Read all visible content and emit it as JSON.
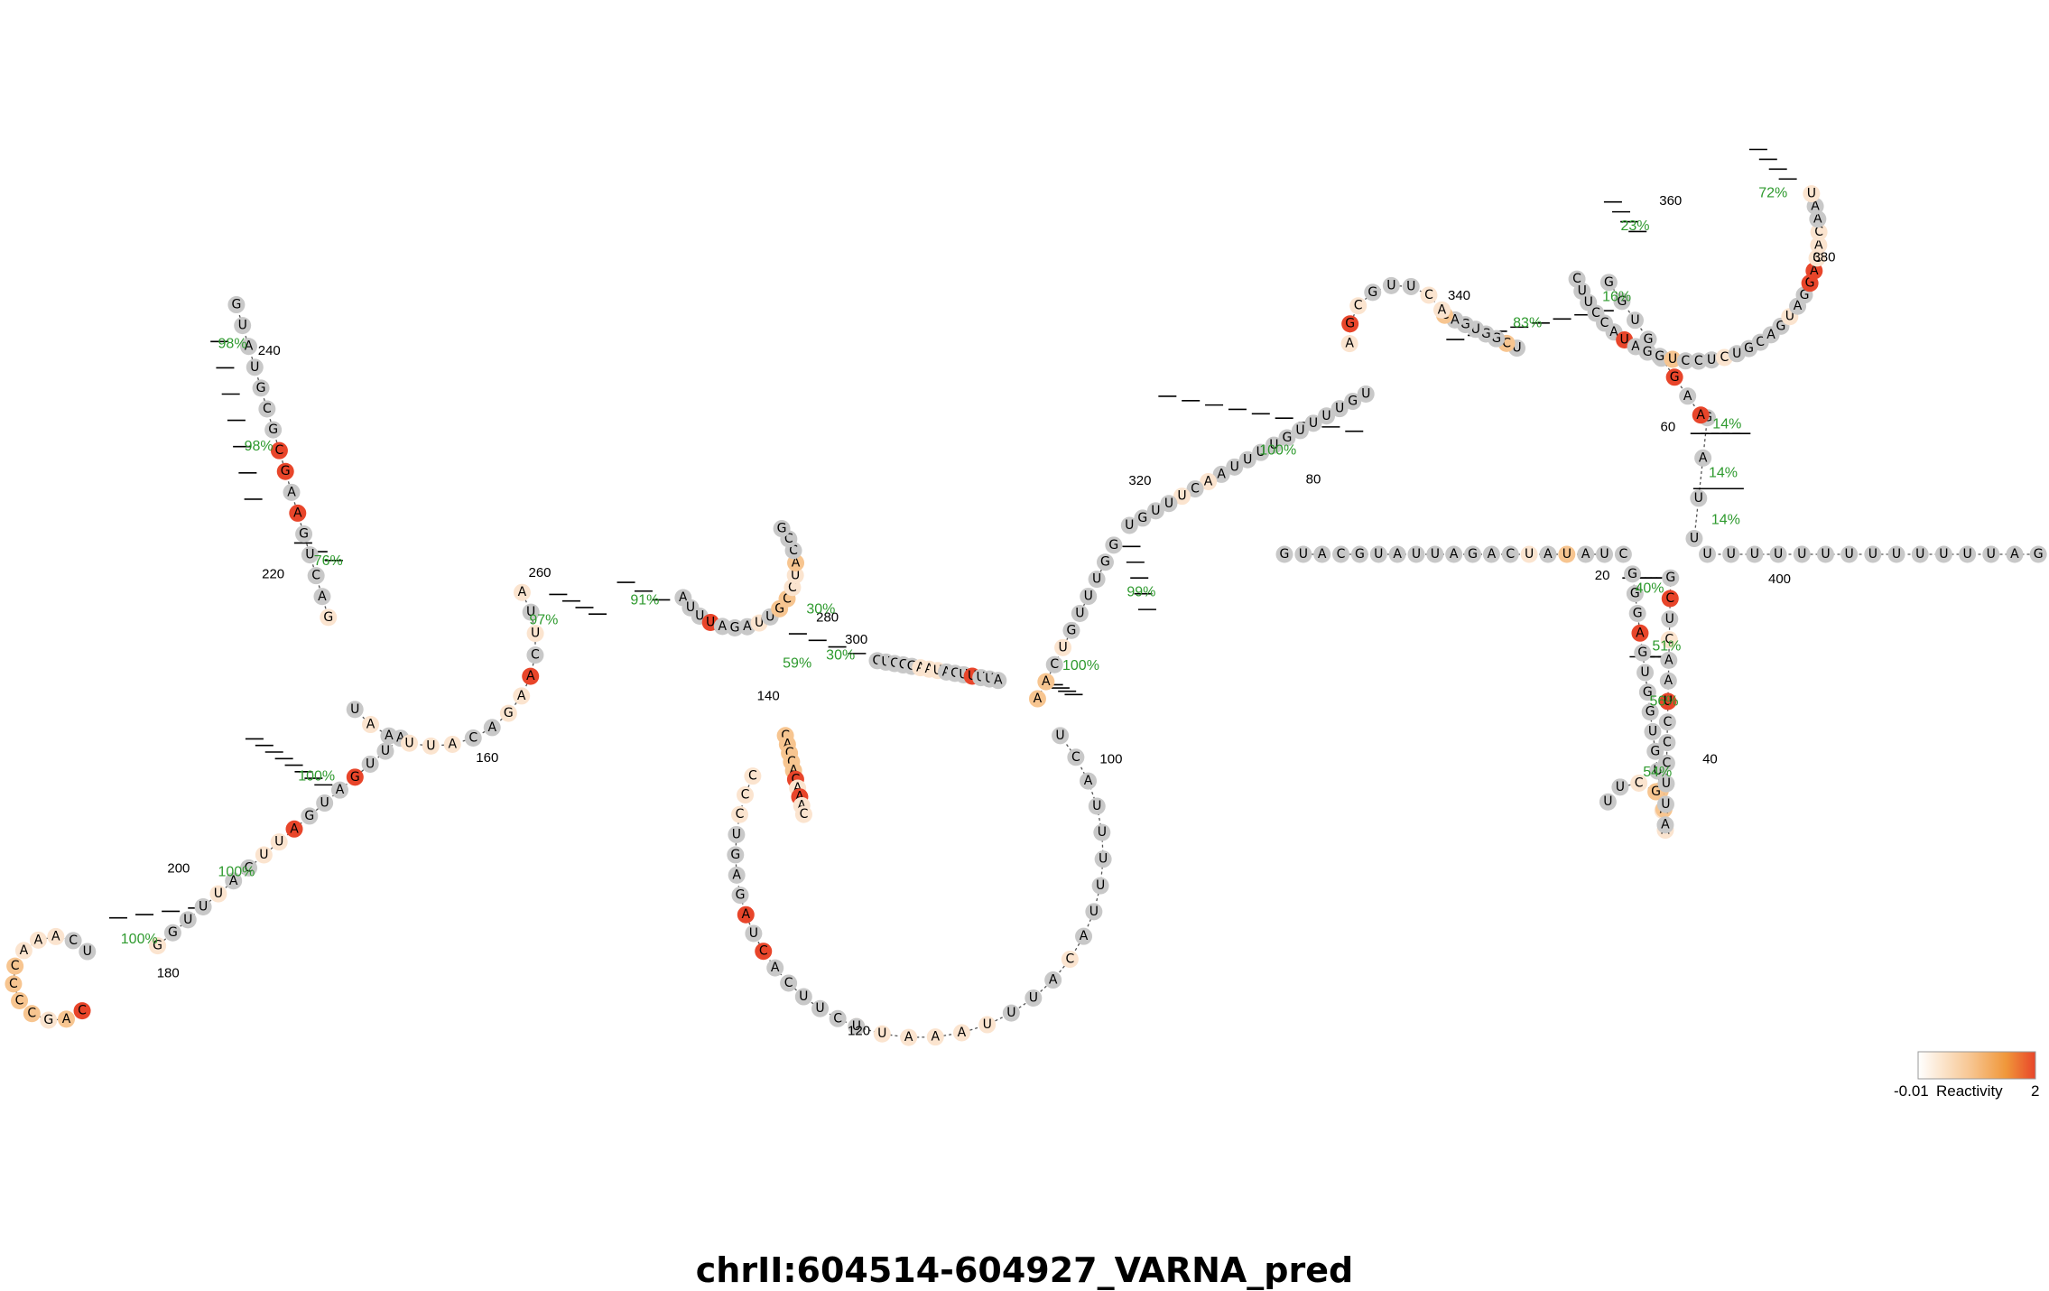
{
  "title": "chrII:604514-604927_VARNA_pred",
  "colors": {
    "gray": "#c8c8c8",
    "light": "#fbe4cf",
    "peach": "#f7c590",
    "red": "#e8452a",
    "pct": "#2e9a2e"
  },
  "legend": {
    "min_label": "-0.01",
    "text": "Reactivity",
    "max_label": "2",
    "gradient": [
      "#ffffff",
      "#f7c590",
      "#f0973a",
      "#e8452a"
    ]
  },
  "numbers": [
    "20",
    "40",
    "60",
    "80",
    "100",
    "120",
    "140",
    "160",
    "180",
    "200",
    "220",
    "240",
    "260",
    "280",
    "300",
    "320",
    "340",
    "360",
    "380",
    "400"
  ],
  "percents": [
    "40%",
    "51%",
    "56%",
    "54%",
    "14%",
    "14%",
    "14%",
    "16%",
    "83%",
    "23%",
    "72%",
    "100%",
    "99%",
    "100%",
    "30%",
    "30%",
    "59%",
    "91%",
    "97%",
    "76%",
    "98%",
    "98%",
    "100%",
    "100%",
    "100%"
  ],
  "segments": [
    {
      "label": "5prime-strand",
      "seq": "GUACGUAUUAGACUAUAUC",
      "shade": "ggggggggggggglgpggg"
    },
    {
      "label": "left-hairpin-up",
      "seq": "GGGAGUGGUGUAAA",
      "shade": "gggrgggggggpll"
    },
    {
      "label": "left-hairpin-loop",
      "seq": "UUCGA",
      "shade": "gglpp"
    },
    {
      "label": "left-hairpin-down",
      "seq": "AUUCCCUAACUCG",
      "shade": "ggggggrgglgrg"
    },
    {
      "label": "upper-stem-a",
      "seq": "UUAG",
      "shade": "gggg"
    },
    {
      "label": "junction-left",
      "seq": "AAGAGUGG",
      "shade": "rgrggggg"
    },
    {
      "label": "helix-340-a",
      "seq": "UCGGUGAC",
      "shade": "gpgggggp"
    },
    {
      "label": "loop-340",
      "seq": "ACUUGCGA",
      "shade": "llggglrl"
    },
    {
      "label": "long-helix-down",
      "seq": "UGUUUUGUUUUAACUUUGU",
      "shade": "gggggggggggglglgggg"
    },
    {
      "label": "helix-99-up",
      "seq": "GGUUUGUCAA",
      "shade": "gggggglgpp"
    },
    {
      "label": "central-loop-a",
      "seq": "UCAUUUUUACAUUUAAAUA",
      "shade": "ggggggggglgggllllll"
    },
    {
      "label": "central-loop-b",
      "seq": "UCUUCACUAGAGUCCC",
      "shade": "ggggggrgrgggglll"
    },
    {
      "label": "central-loop-c",
      "seq": "CACCACAAAC",
      "shade": "ppppprlrll"
    },
    {
      "label": "multiloop-stem",
      "seq": "GUCCGAAUACUUUUA",
      "shade": "ggggglllgggrggg"
    },
    {
      "label": "left-arm",
      "seq": "AUUGAUGAUUCAUUUGG",
      "shade": "gggrgggrllgglgggl"
    },
    {
      "label": "hairpin-180",
      "seq": "UCAAACCCCGAC",
      "shade": "gglllpppplpr"
    },
    {
      "label": "hairpin-240",
      "seq": "GUAUGCGCGAAGUCAG",
      "shade": "gggggggrrgrggggl"
    },
    {
      "label": "ring-220",
      "seq": "UAAUUACAGAACUUA",
      "shade": "glglllggllrglgl"
    },
    {
      "label": "hairpin-280",
      "seq": "AUUUAGAUUGCCUACCG",
      "shade": "gggrggglgppllpgg"
    },
    {
      "label": "upper-right",
      "seq": "CUUCCAUAGGUCCUCUGCAGUAGGACACAAU",
      "shade": "ggggggrgggpggglggggglggrrlllggl"
    },
    {
      "label": "3prime-strand",
      "seq": "UUUUUUUUUUUUUAG",
      "shade": "ggggggggggggggg"
    }
  ]
}
